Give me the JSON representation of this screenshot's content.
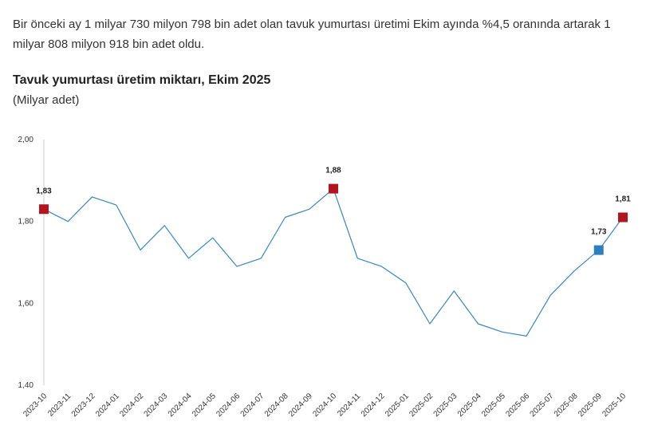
{
  "intro_text": "Bir önceki ay 1 milyar 730 milyon 798 bin adet olan tavuk yumurtası üretimi Ekim ayında %4,5 oranında artarak 1 milyar 808 milyon 918 bin adet oldu.",
  "colors": {
    "line": "#3a86c0",
    "highlight": "#b3151e",
    "previous_month": "#2e7fc1",
    "axis": "#cccccc"
  },
  "chart_data": {
    "type": "line",
    "title": "Tavuk yumurtası üretim miktarı, Ekim 2025",
    "unit_label": "(Milyar adet)",
    "ylim": [
      1.4,
      2.0
    ],
    "yticks": [
      "1,40",
      "1,60",
      "1,80",
      "2,00"
    ],
    "ytick_values": [
      1.4,
      1.6,
      1.8,
      2.0
    ],
    "grid": false,
    "categories": [
      "2023-10",
      "2023-11",
      "2023-12",
      "2024-01",
      "2024-02",
      "2024-03",
      "2024-04",
      "2024-05",
      "2024-06",
      "2024-07",
      "2024-08",
      "2024-09",
      "2024-10",
      "2024-11",
      "2024-12",
      "2025-01",
      "2025-02",
      "2025-03",
      "2025-04",
      "2025-05",
      "2025-06",
      "2025-07",
      "2025-08",
      "2025-09",
      "2025-10"
    ],
    "series": [
      {
        "values": [
          1.83,
          1.8,
          1.86,
          1.84,
          1.73,
          1.79,
          1.71,
          1.76,
          1.69,
          1.71,
          1.81,
          1.83,
          1.88,
          1.71,
          1.69,
          1.65,
          1.55,
          1.63,
          1.55,
          1.53,
          1.52,
          1.62,
          1.68,
          1.73,
          1.81
        ]
      }
    ],
    "markers": [
      {
        "index": 0,
        "label": "1,83",
        "style": "highlight"
      },
      {
        "index": 12,
        "label": "1,88",
        "style": "highlight"
      },
      {
        "index": 23,
        "label": "1,73",
        "style": "previous_month"
      },
      {
        "index": 24,
        "label": "1,81",
        "style": "highlight"
      }
    ]
  }
}
